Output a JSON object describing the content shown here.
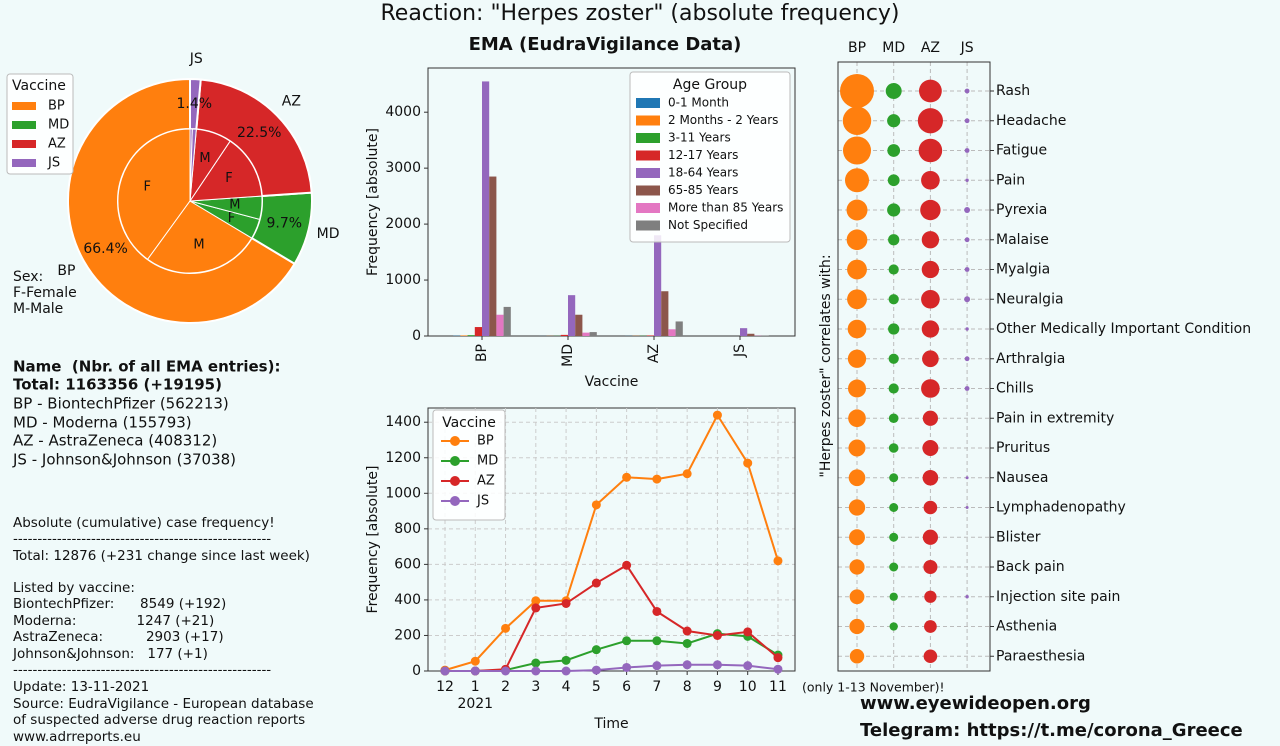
{
  "title": "Reaction: \"Herpes zoster\" (absolute frequency)",
  "chart_data": [
    {
      "type": "pie",
      "legend_title": "Vaccine",
      "categories": [
        "BP",
        "MD",
        "AZ",
        "JS"
      ],
      "values": [
        66.4,
        9.7,
        22.5,
        1.4
      ],
      "value_labels": [
        "66.4%",
        "9.7%",
        "22.5%",
        "1.4%"
      ],
      "colors": [
        "#ff7f0e",
        "#2ca02c",
        "#d62728",
        "#9467bd"
      ],
      "inner": {
        "categories": [
          "F",
          "M",
          "F",
          "M",
          "F",
          "M",
          "F",
          "M"
        ],
        "values": [
          40,
          26.4,
          4.5,
          5.2,
          14.5,
          8,
          0.9,
          0.5
        ]
      },
      "annotation": [
        "Sex:",
        "F-Female",
        "M-Male"
      ]
    },
    {
      "type": "bar",
      "title": "EMA (EudraVigilance Data)",
      "x_label": "Vaccine",
      "y_label": "Frequency [absolute]",
      "legend_title": "Age Group",
      "legend": "upper right",
      "categories": [
        "BP",
        "MD",
        "AZ",
        "JS"
      ],
      "ylim": [
        0,
        4790
      ],
      "yticks": [
        0,
        1000,
        2000,
        3000,
        4000
      ],
      "series": [
        {
          "name": "0-1 Month",
          "color": "#1f77b4",
          "values": [
            5,
            1,
            2,
            0
          ]
        },
        {
          "name": "2 Months - 2 Years",
          "color": "#ff7f0e",
          "values": [
            10,
            2,
            3,
            0
          ]
        },
        {
          "name": "3-11 Years",
          "color": "#2ca02c",
          "values": [
            15,
            3,
            4,
            0
          ]
        },
        {
          "name": "12-17 Years",
          "color": "#d62728",
          "values": [
            160,
            20,
            10,
            0
          ]
        },
        {
          "name": "18-64 Years",
          "color": "#9467bd",
          "values": [
            4550,
            730,
            1800,
            140
          ]
        },
        {
          "name": "65-85 Years",
          "color": "#8c564b",
          "values": [
            2850,
            380,
            800,
            40
          ]
        },
        {
          "name": "More than 85 Years",
          "color": "#e377c2",
          "values": [
            380,
            60,
            120,
            5
          ]
        },
        {
          "name": "Not Specified",
          "color": "#7f7f7f",
          "values": [
            520,
            70,
            260,
            10
          ]
        }
      ]
    },
    {
      "type": "line",
      "x_label": "Time",
      "y_label": "Frequency [absolute]",
      "legend_title": "Vaccine",
      "legend": "upper left",
      "grid": true,
      "categories": [
        "12",
        "1",
        "2",
        "3",
        "4",
        "5",
        "6",
        "7",
        "8",
        "9",
        "10",
        "11"
      ],
      "year_label": "2021",
      "ylim": [
        0,
        1480
      ],
      "yticks": [
        0,
        200,
        400,
        600,
        800,
        1000,
        1200,
        1400
      ],
      "series": [
        {
          "name": "BP",
          "color": "#ff7f0e",
          "values": [
            5,
            55,
            240,
            395,
            395,
            935,
            1090,
            1080,
            1110,
            1440,
            1170,
            620
          ]
        },
        {
          "name": "MD",
          "color": "#2ca02c",
          "values": [
            0,
            0,
            5,
            45,
            60,
            120,
            170,
            170,
            155,
            210,
            195,
            90
          ]
        },
        {
          "name": "AZ",
          "color": "#d62728",
          "values": [
            0,
            0,
            10,
            355,
            380,
            495,
            595,
            335,
            225,
            200,
            220,
            75
          ]
        },
        {
          "name": "JS",
          "color": "#9467bd",
          "values": [
            0,
            0,
            0,
            0,
            0,
            5,
            20,
            30,
            35,
            35,
            30,
            10
          ]
        }
      ]
    },
    {
      "type": "bubble",
      "y_label": "\"Herpes zoster\" correlates with:",
      "grid": true,
      "categories": [
        "BP",
        "MD",
        "AZ",
        "JS"
      ],
      "rows": [
        "Rash",
        "Headache",
        "Fatigue",
        "Pain",
        "Pyrexia",
        "Malaise",
        "Myalgia",
        "Neuralgia",
        "Other Medically Important Condition",
        "Arthralgia",
        "Chills",
        "Pain in extremity",
        "Pruritus",
        "Nausea",
        "Lymphadenopathy",
        "Blister",
        "Back pain",
        "Injection site pain",
        "Asthenia",
        "Paraesthesia"
      ],
      "series": [
        {
          "name": "BP",
          "color": "#ff7f0e",
          "sizes": [
            1000,
            700,
            680,
            500,
            380,
            370,
            340,
            340,
            300,
            290,
            280,
            270,
            250,
            240,
            230,
            220,
            200,
            190,
            200,
            180
          ]
        },
        {
          "name": "MD",
          "color": "#2ca02c",
          "sizes": [
            220,
            150,
            140,
            120,
            150,
            110,
            90,
            90,
            110,
            90,
            90,
            80,
            80,
            70,
            70,
            70,
            70,
            60,
            60,
            null
          ]
        },
        {
          "name": "AZ",
          "color": "#d62728",
          "sizes": [
            450,
            550,
            480,
            300,
            360,
            260,
            260,
            300,
            260,
            240,
            300,
            200,
            220,
            210,
            160,
            200,
            170,
            130,
            140,
            160
          ]
        },
        {
          "name": "JS",
          "color": "#9467bd",
          "sizes": [
            20,
            20,
            20,
            10,
            30,
            20,
            20,
            30,
            10,
            20,
            20,
            null,
            null,
            5,
            5,
            null,
            null,
            10,
            null,
            null
          ]
        }
      ]
    }
  ],
  "info": {
    "heading": "Name  (Nbr. of all EMA entries):",
    "total": "Total: 1163356 (+19195)",
    "entries": [
      "BP - BiontechPfizer (562213)",
      "MD - Moderna (155793)",
      "AZ - AstraZeneca (408312)",
      "JS - Johnson&Johnson (37038)"
    ],
    "note": "Absolute (cumulative) case frequency!",
    "rule": "-----------------------------------------------------",
    "total_cases": "Total: 12876 (+231 change since last week)",
    "listed": "Listed by vaccine:",
    "by_vaccine": [
      "BiontechPfizer:      8549 (+192)",
      "Moderna:              1247 (+21)",
      "AstraZeneca:          2903 (+17)",
      "Johnson&Johnson:   177 (+1)"
    ],
    "update": "Update: 13-11-2021",
    "source": [
      "Source: EudraVigilance - European database",
      "of suspected adverse drug reaction reports",
      "www.adrreports.eu"
    ]
  },
  "period_note": "(only 1-13 November)!",
  "website": "www.eyewideopen.org",
  "telegram": "Telegram: https://t.me/corona_Greece"
}
